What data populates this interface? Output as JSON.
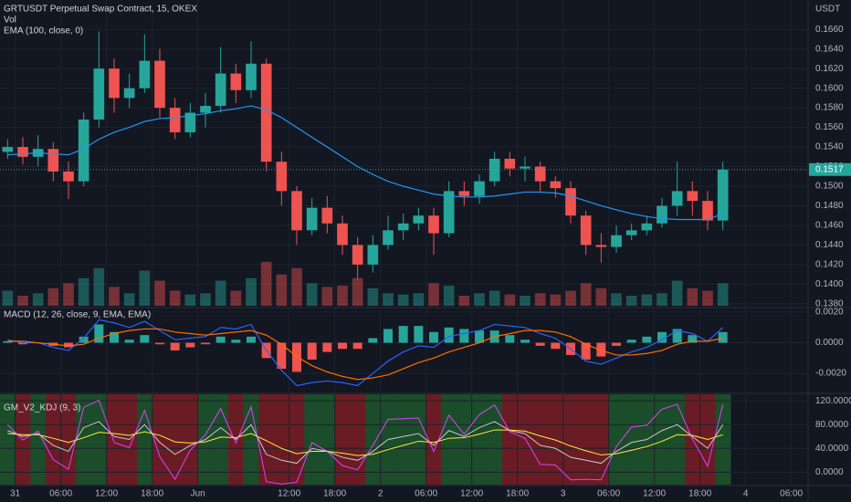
{
  "chart_data": [
    {
      "type": "candlestick",
      "title": "GRTUSDT Perpetual Swap Contract, 15, OKEX",
      "volume_label": "Vol",
      "ema_label": "EMA (100, close, 0)",
      "unit": "USDT",
      "x": [
        1,
        3,
        5,
        7,
        9,
        11,
        13,
        15,
        17,
        19,
        21,
        23,
        25,
        27,
        29,
        31,
        33,
        35,
        37,
        39,
        41,
        43,
        45,
        47,
        49,
        51,
        53,
        55,
        57,
        59,
        61,
        63,
        65,
        67,
        69,
        71,
        73,
        75,
        77,
        79,
        81,
        83,
        85,
        87,
        89,
        91,
        93,
        95
      ],
      "open": [
        0.1535,
        0.154,
        0.153,
        0.1538,
        0.1515,
        0.1505,
        0.1568,
        0.162,
        0.159,
        0.16,
        0.1628,
        0.158,
        0.1555,
        0.1575,
        0.1582,
        0.1615,
        0.1598,
        0.1625,
        0.1525,
        0.1495,
        0.1455,
        0.1478,
        0.1462,
        0.144,
        0.142,
        0.144,
        0.1455,
        0.1462,
        0.147,
        0.1452,
        0.1495,
        0.149,
        0.1505,
        0.1528,
        0.1518,
        0.152,
        0.1505,
        0.1498,
        0.147,
        0.144,
        0.1438,
        0.145,
        0.1455,
        0.1462,
        0.148,
        0.1495,
        0.1485,
        0.1465
      ],
      "high": [
        0.1548,
        0.155,
        0.1552,
        0.1545,
        0.1525,
        0.1575,
        0.1658,
        0.163,
        0.1615,
        0.1655,
        0.164,
        0.159,
        0.1585,
        0.1595,
        0.1642,
        0.1625,
        0.1648,
        0.163,
        0.1535,
        0.15,
        0.1488,
        0.149,
        0.147,
        0.1448,
        0.145,
        0.147,
        0.1472,
        0.1478,
        0.1478,
        0.1505,
        0.1505,
        0.1512,
        0.1535,
        0.1535,
        0.153,
        0.1525,
        0.151,
        0.1505,
        0.1475,
        0.1452,
        0.146,
        0.1462,
        0.147,
        0.1488,
        0.1525,
        0.1505,
        0.1495,
        0.1525
      ],
      "low": [
        0.1528,
        0.1522,
        0.152,
        0.1505,
        0.1487,
        0.15,
        0.156,
        0.1575,
        0.158,
        0.1595,
        0.157,
        0.1548,
        0.155,
        0.156,
        0.1575,
        0.1585,
        0.159,
        0.1515,
        0.148,
        0.144,
        0.145,
        0.1452,
        0.143,
        0.1405,
        0.1412,
        0.1435,
        0.1445,
        0.1455,
        0.143,
        0.1448,
        0.148,
        0.1482,
        0.15,
        0.151,
        0.1505,
        0.1495,
        0.1488,
        0.1462,
        0.143,
        0.1422,
        0.1432,
        0.1445,
        0.145,
        0.1458,
        0.147,
        0.147,
        0.1455,
        0.1455
      ],
      "close": [
        0.154,
        0.153,
        0.1538,
        0.1515,
        0.1505,
        0.1568,
        0.162,
        0.159,
        0.16,
        0.1628,
        0.158,
        0.1555,
        0.1575,
        0.1582,
        0.1615,
        0.1598,
        0.1625,
        0.1525,
        0.1495,
        0.1455,
        0.1478,
        0.1462,
        0.144,
        0.142,
        0.144,
        0.1455,
        0.1462,
        0.147,
        0.1452,
        0.1495,
        0.149,
        0.1505,
        0.1528,
        0.1518,
        0.152,
        0.1505,
        0.1498,
        0.147,
        0.144,
        0.1438,
        0.145,
        0.1455,
        0.1462,
        0.148,
        0.1495,
        0.1485,
        0.1465,
        0.1517
      ],
      "ema": [
        0.1532,
        0.1533,
        0.1534,
        0.1533,
        0.1532,
        0.1538,
        0.1548,
        0.1555,
        0.156,
        0.1566,
        0.1569,
        0.157,
        0.1572,
        0.1574,
        0.1577,
        0.1579,
        0.1582,
        0.1578,
        0.157,
        0.156,
        0.155,
        0.154,
        0.153,
        0.152,
        0.1512,
        0.1505,
        0.15,
        0.1496,
        0.1492,
        0.149,
        0.1489,
        0.1489,
        0.149,
        0.1492,
        0.1494,
        0.1494,
        0.1493,
        0.149,
        0.1485,
        0.148,
        0.1476,
        0.1472,
        0.1469,
        0.1467,
        0.1466,
        0.1466,
        0.1466,
        0.1472
      ],
      "ema_color": "#2196f3",
      "volume": [
        12,
        8,
        10,
        14,
        18,
        22,
        30,
        15,
        10,
        28,
        20,
        12,
        9,
        10,
        20,
        12,
        22,
        35,
        25,
        30,
        18,
        15,
        16,
        22,
        14,
        10,
        9,
        10,
        18,
        16,
        8,
        10,
        12,
        9,
        8,
        10,
        9,
        12,
        18,
        14,
        10,
        8,
        9,
        10,
        20,
        14,
        12,
        18
      ],
      "volume_ylim": [
        0,
        40
      ],
      "up_color": "#26a69a",
      "down_color": "#ef5350",
      "last_price": 0.1517,
      "ylim": [
        0.1378,
        0.169
      ],
      "yticks": [
        {
          "value": 0.138,
          "label": "0.1380"
        },
        {
          "value": 0.14,
          "label": "0.1400"
        },
        {
          "value": 0.142,
          "label": "0.1420"
        },
        {
          "value": 0.144,
          "label": "0.1440"
        },
        {
          "value": 0.146,
          "label": "0.1460"
        },
        {
          "value": 0.148,
          "label": "0.1480"
        },
        {
          "value": 0.15,
          "label": "0.1500"
        },
        {
          "value": 0.152,
          "label": "0.1520"
        },
        {
          "value": 0.154,
          "label": "0.1540"
        },
        {
          "value": 0.156,
          "label": "0.1560"
        },
        {
          "value": 0.158,
          "label": "0.1580"
        },
        {
          "value": 0.16,
          "label": "0.1600"
        },
        {
          "value": 0.162,
          "label": "0.1620"
        },
        {
          "value": 0.164,
          "label": "0.1640"
        },
        {
          "value": 0.166,
          "label": "0.1660"
        }
      ],
      "grid": true
    },
    {
      "type": "macd",
      "title": "MACD (12, 26, close, 9, EMA, EMA)",
      "macd": [
        0.0002,
        0.0,
        0.0,
        -0.0003,
        -0.0005,
        0.0003,
        0.0015,
        0.0013,
        0.001,
        0.0014,
        0.0008,
        0.0002,
        0.0003,
        0.0004,
        0.001,
        0.0009,
        0.0012,
        -0.0005,
        -0.0018,
        -0.0028,
        -0.0026,
        -0.0025,
        -0.0026,
        -0.0028,
        -0.002,
        -0.0012,
        -0.0006,
        -0.0002,
        -0.0003,
        0.0004,
        0.0006,
        0.0008,
        0.0012,
        0.0011,
        0.001,
        0.0006,
        0.0003,
        -0.0004,
        -0.0012,
        -0.0014,
        -0.001,
        -0.0006,
        -0.0003,
        0.0002,
        0.0008,
        0.0006,
        0.0001,
        0.001
      ],
      "signal": [
        0.0001,
        0.0001,
        0.0,
        -0.0001,
        -0.0002,
        -0.0001,
        0.0003,
        0.0006,
        0.0008,
        0.0009,
        0.0009,
        0.0007,
        0.0006,
        0.0005,
        0.0006,
        0.0007,
        0.0008,
        0.0005,
        -0.0001,
        -0.0009,
        -0.0015,
        -0.0019,
        -0.0022,
        -0.0024,
        -0.0023,
        -0.0021,
        -0.0017,
        -0.0013,
        -0.001,
        -0.0006,
        -0.0003,
        0.0,
        0.0004,
        0.0006,
        0.0008,
        0.0008,
        0.0007,
        0.0004,
        -0.0001,
        -0.0005,
        -0.0008,
        -0.0008,
        -0.0007,
        -0.0005,
        -0.0001,
        0.0001,
        0.0001,
        0.0003
      ],
      "histogram": [
        0.0001,
        -0.0001,
        0.0,
        -0.0002,
        -0.0003,
        0.0004,
        0.0012,
        0.0007,
        0.0002,
        0.0005,
        -0.0001,
        -0.0005,
        -0.0003,
        -0.0001,
        0.0004,
        0.0002,
        0.0004,
        -0.001,
        -0.0017,
        -0.0019,
        -0.0011,
        -0.0006,
        -0.0004,
        -0.0004,
        0.0003,
        0.0009,
        0.0011,
        0.0011,
        0.0007,
        0.001,
        0.0009,
        0.0008,
        0.0008,
        0.0005,
        0.0002,
        -0.0002,
        -0.0004,
        -0.0008,
        -0.0011,
        -0.0009,
        -0.0002,
        0.0002,
        0.0004,
        0.0007,
        0.0009,
        0.0005,
        0.0,
        0.0007
      ],
      "macd_color": "#2962ff",
      "signal_color": "#ff6d00",
      "hist_up_color": "#26a69a",
      "hist_down_color": "#ef5350",
      "ylim": [
        -0.00325,
        0.00224
      ],
      "yticks": [
        {
          "value": 0.002,
          "label": "0.0020"
        },
        {
          "value": 0.0,
          "label": "0.0000"
        },
        {
          "value": -0.002,
          "label": "-0.0020"
        }
      ],
      "grid": true
    },
    {
      "type": "kdj",
      "title": "GM_V2_KDJ (9, 3)",
      "k": [
        70,
        60,
        65,
        45,
        35,
        75,
        85,
        60,
        55,
        80,
        50,
        30,
        45,
        55,
        75,
        55,
        80,
        30,
        20,
        15,
        40,
        35,
        25,
        20,
        35,
        55,
        60,
        65,
        45,
        70,
        60,
        75,
        85,
        70,
        65,
        45,
        40,
        25,
        20,
        15,
        35,
        50,
        55,
        70,
        80,
        60,
        40,
        80
      ],
      "d": [
        65,
        63,
        63,
        57,
        50,
        58,
        67,
        65,
        62,
        68,
        62,
        51,
        49,
        51,
        59,
        58,
        65,
        53,
        40,
        31,
        35,
        35,
        32,
        28,
        30,
        38,
        45,
        52,
        50,
        57,
        58,
        64,
        71,
        71,
        69,
        61,
        54,
        44,
        36,
        29,
        31,
        37,
        43,
        52,
        63,
        62,
        55,
        63
      ],
      "j": [
        80,
        54,
        69,
        21,
        5,
        109,
        121,
        50,
        41,
        104,
        26,
        -12,
        37,
        63,
        107,
        49,
        110,
        -16,
        -20,
        -17,
        50,
        35,
        11,
        4,
        45,
        89,
        90,
        91,
        35,
        96,
        64,
        97,
        113,
        68,
        57,
        13,
        12,
        -13,
        -12,
        -13,
        43,
        76,
        79,
        106,
        114,
        56,
        10,
        114
      ],
      "k_color": "#c8c8c8",
      "d_color": "#ffeb3b",
      "j_color": "#e040fb",
      "bull_color": "#1b4d2a",
      "bear_color": "#6a1c24",
      "ylim": [
        -21,
        131
      ],
      "yticks": [
        {
          "value": 120,
          "label": "120.0000"
        },
        {
          "value": 80,
          "label": "80.0000"
        },
        {
          "value": 40,
          "label": "40.0000"
        },
        {
          "value": 0,
          "label": "0.0000"
        }
      ],
      "xlim": [
        0,
        106.2
      ],
      "xticks": [
        {
          "value": 2,
          "label": "31"
        },
        {
          "value": 8,
          "label": "06:00"
        },
        {
          "value": 14,
          "label": "12:00"
        },
        {
          "value": 20,
          "label": "18:00"
        },
        {
          "value": 26,
          "label": "Jun"
        },
        {
          "value": 38,
          "label": "12:00"
        },
        {
          "value": 44,
          "label": "18:00"
        },
        {
          "value": 50,
          "label": "2"
        },
        {
          "value": 56,
          "label": "06:00"
        },
        {
          "value": 62,
          "label": "12:00"
        },
        {
          "value": 68,
          "label": "18:00"
        },
        {
          "value": 74,
          "label": "3"
        },
        {
          "value": 80,
          "label": "06:00"
        },
        {
          "value": 86,
          "label": "12:00"
        },
        {
          "value": 92,
          "label": "18:00"
        },
        {
          "value": 98,
          "label": "4"
        },
        {
          "value": 104,
          "label": "06:00"
        }
      ],
      "grid": true
    }
  ]
}
